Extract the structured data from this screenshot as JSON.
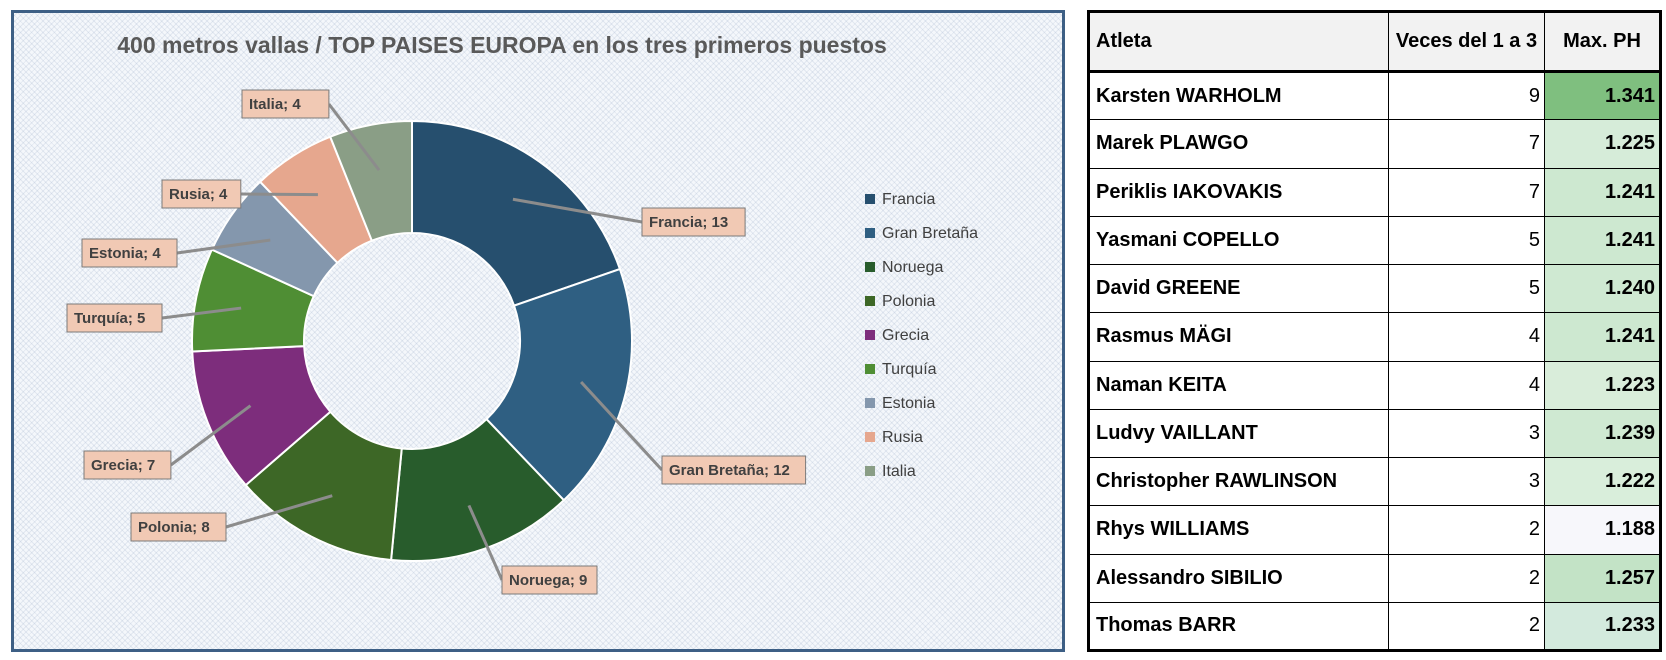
{
  "chart_data": {
    "type": "pie",
    "title": "400 metros vallas / TOP  PAISES EUROPA en los tres primeros puestos",
    "categories": [
      "Francia",
      "Gran Bretaña",
      "Noruega",
      "Polonia",
      "Grecia",
      "Turquía",
      "Estonia",
      "Rusia",
      "Italia"
    ],
    "values": [
      13,
      12,
      9,
      8,
      7,
      5,
      4,
      4,
      4
    ],
    "data_labels": [
      "Francia; 13",
      "Gran Bretaña; 12",
      "Noruega; 9",
      "Polonia; 8",
      "Grecia; 7",
      "Turquía; 5",
      "Estonia; 4",
      "Rusia; 4",
      "Italia; 4"
    ],
    "colors": [
      "#264f6e",
      "#2f5f82",
      "#285c2c",
      "#3d6726",
      "#7d2d7c",
      "#4f8e34",
      "#8497ad",
      "#e6a78e",
      "#8a9e86"
    ],
    "donut": true,
    "legend_position": "right"
  },
  "table": {
    "headers": [
      "Atleta",
      "Veces del 1 a 3",
      "Max. PH"
    ],
    "rows": [
      {
        "name": "Karsten WARHOLM",
        "times": "9",
        "max": "1.341",
        "shade": "#7fbf7f"
      },
      {
        "name": "Marek PLAWGO",
        "times": "7",
        "max": "1.225",
        "shade": "#d6ecd9"
      },
      {
        "name": "Periklis IAKOVAKIS",
        "times": "7",
        "max": "1.241",
        "shade": "#cde8d0"
      },
      {
        "name": "Yasmani COPELLO",
        "times": "5",
        "max": "1.241",
        "shade": "#cde8d0"
      },
      {
        "name": "David GREENE",
        "times": "5",
        "max": "1.240",
        "shade": "#cfe9d2"
      },
      {
        "name": "Rasmus MÄGI",
        "times": "4",
        "max": "1.241",
        "shade": "#cde8d0"
      },
      {
        "name": "Naman KEITA",
        "times": "4",
        "max": "1.223",
        "shade": "#d9edda"
      },
      {
        "name": "Ludvy VAILLANT",
        "times": "3",
        "max": "1.239",
        "shade": "#cfe9d2"
      },
      {
        "name": "Christopher RAWLINSON",
        "times": "3",
        "max": "1.222",
        "shade": "#d9eedb"
      },
      {
        "name": "Rhys WILLIAMS",
        "times": "2",
        "max": "1.188",
        "shade": "#f7f7fb"
      },
      {
        "name": "Alessandro SIBILIO",
        "times": "2",
        "max": "1.257",
        "shade": "#c3e3c6"
      },
      {
        "name": "Thomas BARR",
        "times": "2",
        "max": "1.233",
        "shade": "#d3eadd"
      }
    ]
  }
}
